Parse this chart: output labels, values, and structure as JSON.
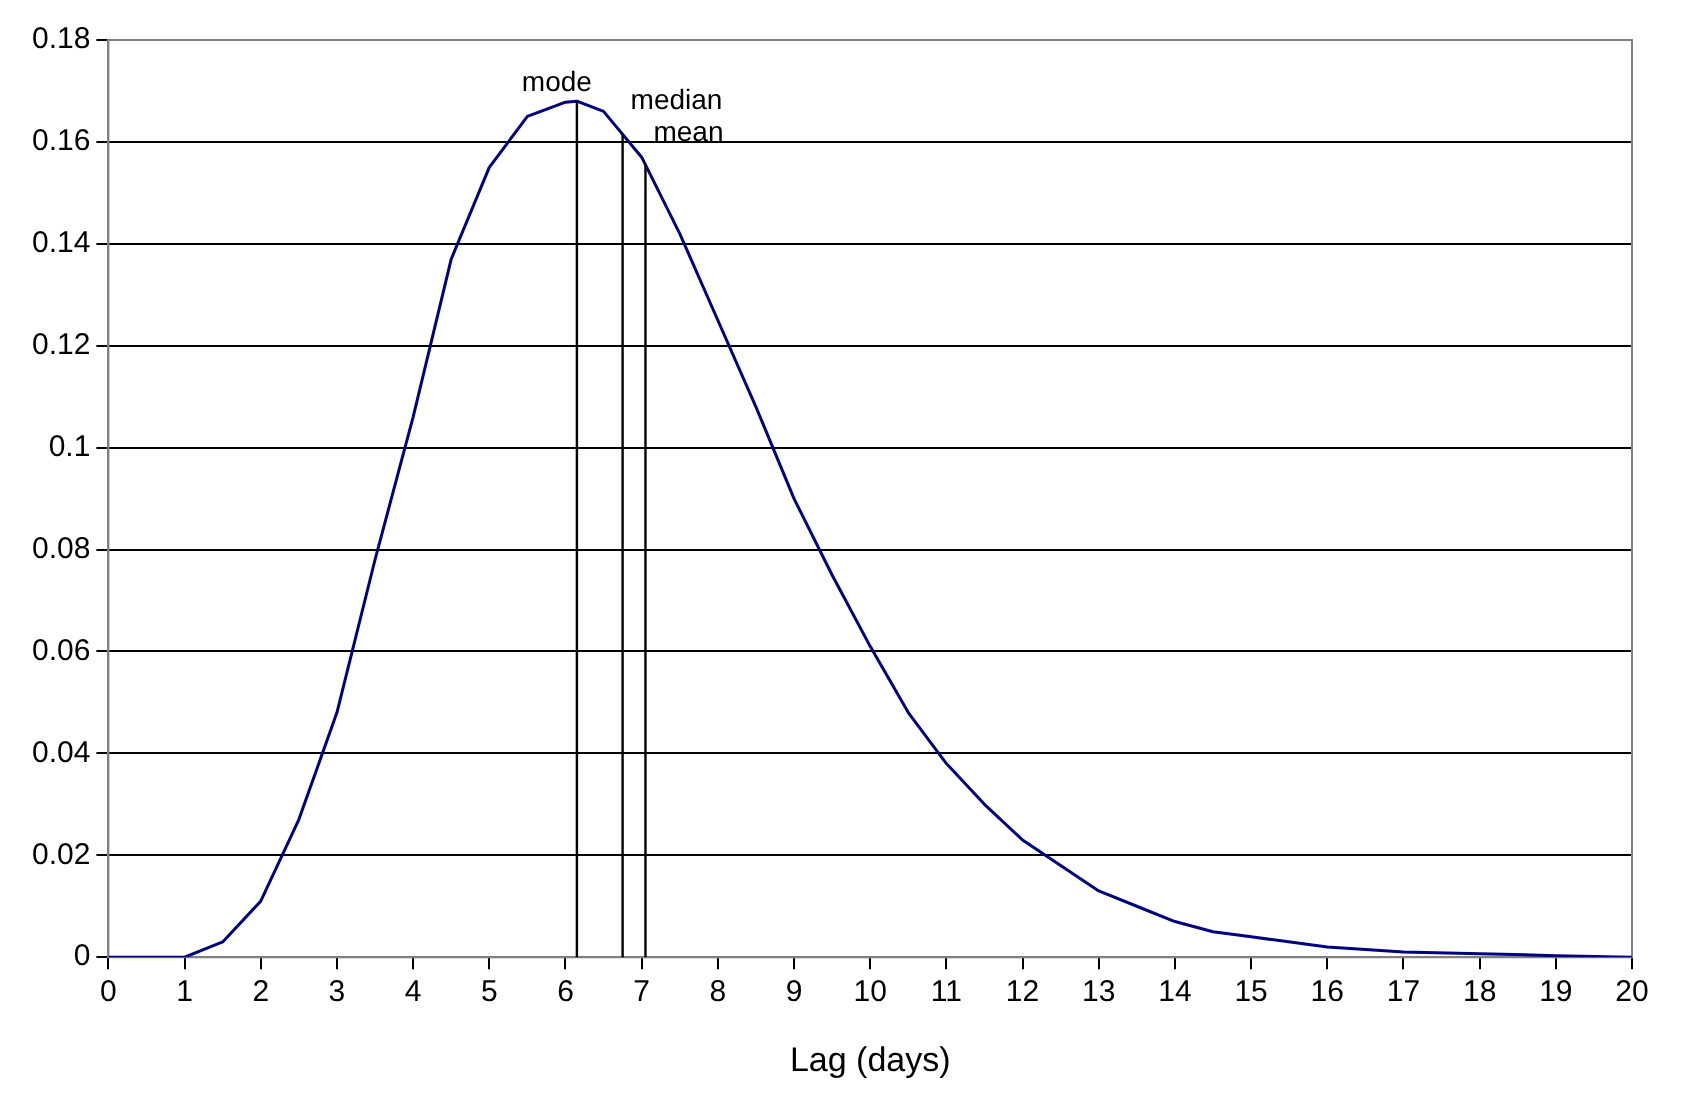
{
  "chart_data": {
    "type": "line",
    "xlabel": "Lag (days)",
    "series": [
      {
        "color": "#000080",
        "x": [
          0,
          0.5,
          1,
          1.5,
          2,
          2.5,
          3,
          3.5,
          4,
          4.5,
          5,
          5.5,
          6,
          6.15,
          6.5,
          7,
          7.5,
          8,
          8.5,
          9,
          9.5,
          10,
          10.5,
          11,
          11.5,
          12,
          12.5,
          13,
          13.5,
          14,
          14.5,
          15,
          16,
          17,
          18,
          19,
          20
        ],
        "values": [
          0,
          0,
          0,
          0.003,
          0.011,
          0.027,
          0.048,
          0.078,
          0.106,
          0.137,
          0.155,
          0.165,
          0.1678,
          0.168,
          0.166,
          0.157,
          0.142,
          0.125,
          0.108,
          0.09,
          0.075,
          0.061,
          0.048,
          0.038,
          0.03,
          0.023,
          0.018,
          0.013,
          0.01,
          0.007,
          0.005,
          0.004,
          0.002,
          0.001,
          0.0007,
          0.0003,
          0
        ]
      }
    ],
    "xlim": [
      0,
      20
    ],
    "xticks": [
      0,
      1,
      2,
      3,
      4,
      5,
      6,
      7,
      8,
      9,
      10,
      11,
      12,
      13,
      14,
      15,
      16,
      17,
      18,
      19,
      20
    ],
    "ylim": [
      0,
      0.18
    ],
    "yticks": [
      0,
      0.02,
      0.04,
      0.06,
      0.08,
      0.1,
      0.12,
      0.14,
      0.16,
      0.18
    ],
    "grid": "y",
    "marker": "none",
    "line_style": "solid",
    "legend": false,
    "ref_lines": [
      {
        "axis": "x",
        "value": 6.15,
        "label": "mode",
        "color": "#000000"
      },
      {
        "axis": "x",
        "value": 6.75,
        "label": "median",
        "color": "#000000"
      },
      {
        "axis": "x",
        "value": 7.05,
        "label": "mean",
        "color": "#000000"
      }
    ]
  }
}
